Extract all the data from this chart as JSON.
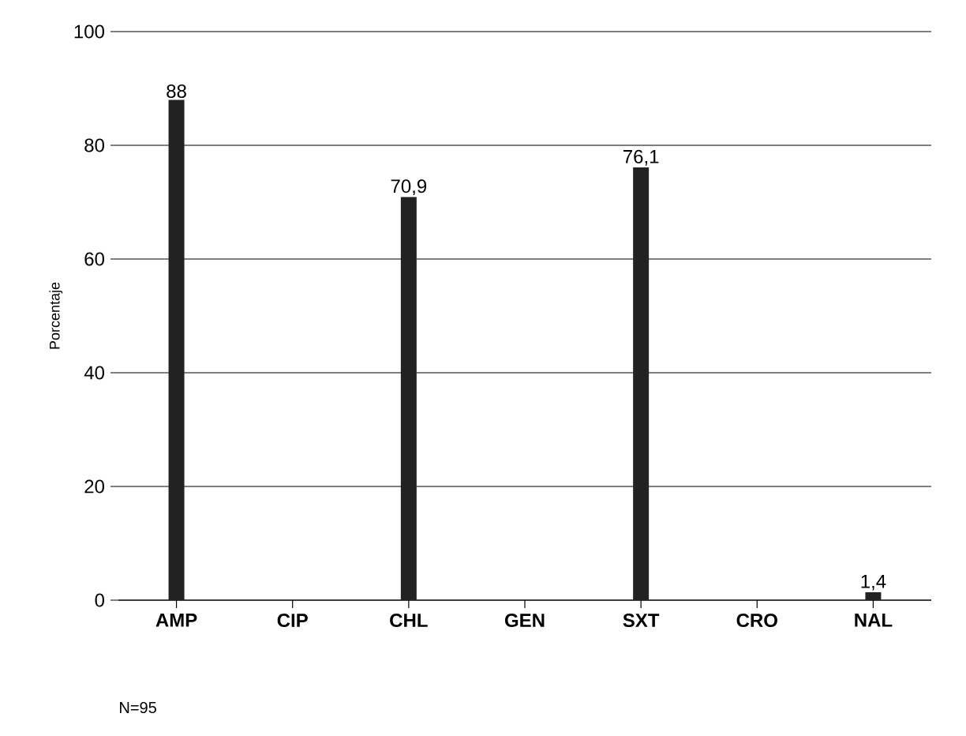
{
  "chart_data": {
    "type": "bar",
    "ylabel": "Porcentaje",
    "categories": [
      "AMP",
      "CIP",
      "CHL",
      "GEN",
      "SXT",
      "CRO",
      "NAL"
    ],
    "values": [
      88,
      0,
      70.9,
      0,
      76.1,
      0,
      1.4
    ],
    "value_labels": [
      "88",
      null,
      "70,9",
      null,
      "76,1",
      null,
      "1,4"
    ],
    "color": "#222222",
    "ylim": [
      0,
      100
    ],
    "yticks": [
      0,
      20,
      40,
      60,
      80,
      100
    ],
    "grid": "y",
    "annotations": [
      "N=95"
    ]
  }
}
